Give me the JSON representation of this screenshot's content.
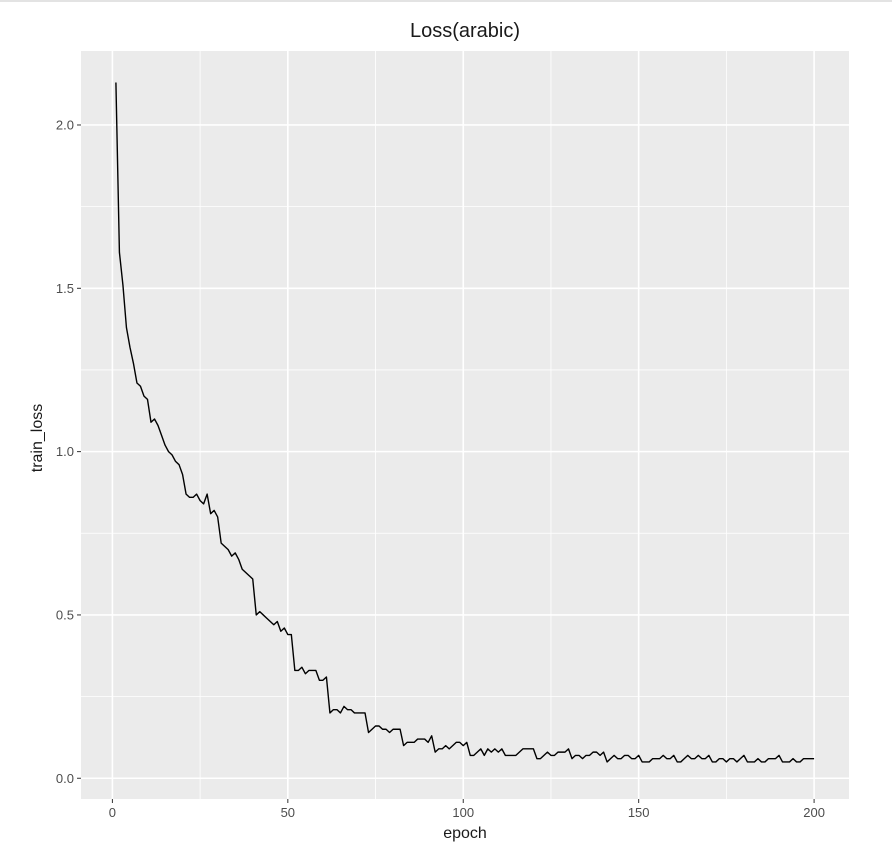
{
  "chart_data": {
    "type": "line",
    "title": "Loss(arabic)",
    "xlabel": "epoch",
    "ylabel": "train_loss",
    "xlim": [
      -8.95,
      209.95
    ],
    "ylim": [
      -0.0635,
      2.2265
    ],
    "x_ticks": [
      0,
      50,
      100,
      150,
      200
    ],
    "y_ticks": [
      0.0,
      0.5,
      1.0,
      1.5,
      2.0
    ],
    "x_tick_labels": [
      "0",
      "50",
      "100",
      "150",
      "200"
    ],
    "y_tick_labels": [
      "0.0",
      "0.5",
      "1.0",
      "1.5",
      "2.0"
    ],
    "grid": true,
    "legend": "none",
    "colors": {
      "panel": "#ebebeb",
      "grid": "#ffffff",
      "line": "#000000"
    },
    "series": [
      {
        "x_start": 1,
        "x_step": 1,
        "values": [
          2.13,
          1.61,
          1.51,
          1.38,
          1.32,
          1.27,
          1.21,
          1.2,
          1.17,
          1.16,
          1.09,
          1.1,
          1.08,
          1.05,
          1.02,
          1.0,
          0.99,
          0.97,
          0.96,
          0.93,
          0.87,
          0.86,
          0.86,
          0.87,
          0.85,
          0.84,
          0.87,
          0.81,
          0.82,
          0.8,
          0.72,
          0.71,
          0.7,
          0.68,
          0.69,
          0.67,
          0.64,
          0.63,
          0.62,
          0.61,
          0.5,
          0.51,
          0.5,
          0.49,
          0.48,
          0.47,
          0.48,
          0.45,
          0.46,
          0.44,
          0.44,
          0.33,
          0.33,
          0.34,
          0.32,
          0.33,
          0.33,
          0.33,
          0.3,
          0.3,
          0.31,
          0.2,
          0.21,
          0.21,
          0.2,
          0.22,
          0.21,
          0.21,
          0.2,
          0.2,
          0.2,
          0.2,
          0.14,
          0.15,
          0.16,
          0.16,
          0.15,
          0.15,
          0.14,
          0.15,
          0.15,
          0.15,
          0.1,
          0.11,
          0.11,
          0.11,
          0.12,
          0.12,
          0.12,
          0.11,
          0.13,
          0.08,
          0.09,
          0.09,
          0.1,
          0.09,
          0.1,
          0.11,
          0.11,
          0.1,
          0.11,
          0.07,
          0.07,
          0.08,
          0.09,
          0.07,
          0.09,
          0.08,
          0.09,
          0.08,
          0.09,
          0.07,
          0.07,
          0.07,
          0.07,
          0.08,
          0.09,
          0.09,
          0.09,
          0.09,
          0.06,
          0.06,
          0.07,
          0.08,
          0.07,
          0.07,
          0.08,
          0.08,
          0.08,
          0.09,
          0.06,
          0.07,
          0.07,
          0.06,
          0.07,
          0.07,
          0.08,
          0.08,
          0.07,
          0.08,
          0.05,
          0.06,
          0.07,
          0.06,
          0.06,
          0.07,
          0.07,
          0.06,
          0.06,
          0.07,
          0.05,
          0.05,
          0.05,
          0.06,
          0.06,
          0.06,
          0.07,
          0.06,
          0.06,
          0.07,
          0.05,
          0.05,
          0.06,
          0.07,
          0.06,
          0.06,
          0.07,
          0.06,
          0.06,
          0.07,
          0.05,
          0.05,
          0.06,
          0.06,
          0.05,
          0.06,
          0.06,
          0.05,
          0.06,
          0.07,
          0.05,
          0.05,
          0.05,
          0.06,
          0.05,
          0.05,
          0.06,
          0.06,
          0.06,
          0.07,
          0.05,
          0.05,
          0.05,
          0.06,
          0.05,
          0.05,
          0.06,
          0.06,
          0.06,
          0.06
        ]
      }
    ]
  }
}
